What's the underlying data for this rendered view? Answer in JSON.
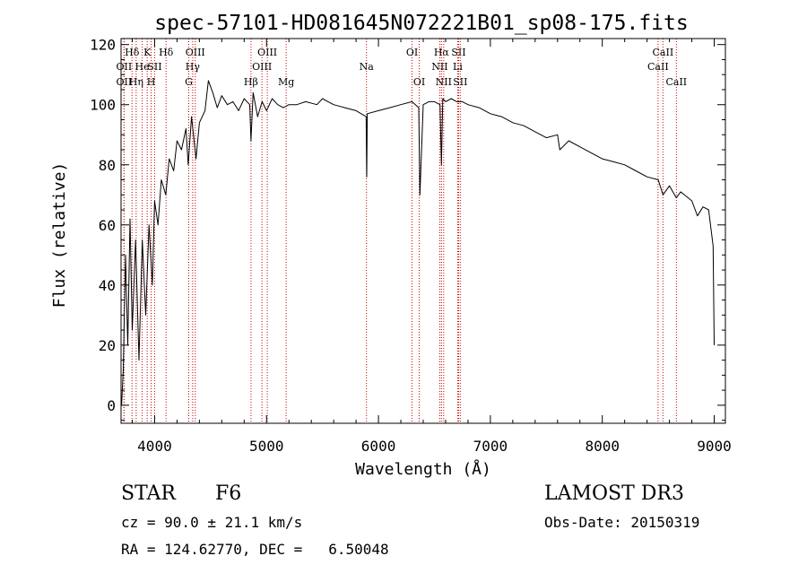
{
  "chart_data": {
    "type": "line",
    "title": "spec-57101-HD081645N072221B01_sp08-175.fits",
    "xlabel": "Wavelength (Å)",
    "ylabel": "Flux (relative)",
    "xlim": [
      3700,
      9100
    ],
    "ylim": [
      -6,
      122
    ],
    "xticks": [
      4000,
      5000,
      6000,
      7000,
      8000,
      9000
    ],
    "yticks": [
      0,
      20,
      40,
      60,
      80,
      100,
      120
    ],
    "xtick_labels": [
      "4000",
      "5000",
      "6000",
      "7000",
      "8000",
      "9000"
    ],
    "ytick_labels": [
      "0",
      "20",
      "40",
      "60",
      "80",
      "100",
      "120"
    ],
    "grid": false,
    "series": [
      {
        "name": "flux",
        "x": [
          3705,
          3720,
          3740,
          3760,
          3780,
          3800,
          3830,
          3860,
          3890,
          3920,
          3950,
          3980,
          4000,
          4030,
          4060,
          4100,
          4130,
          4170,
          4200,
          4240,
          4280,
          4300,
          4330,
          4370,
          4400,
          4450,
          4480,
          4520,
          4560,
          4600,
          4650,
          4700,
          4750,
          4800,
          4850,
          4861,
          4880,
          4920,
          4960,
          5000,
          5050,
          5100,
          5150,
          5200,
          5270,
          5350,
          5450,
          5500,
          5550,
          5600,
          5700,
          5800,
          5890,
          5895,
          5900,
          6000,
          6100,
          6200,
          6300,
          6360,
          6370,
          6400,
          6450,
          6500,
          6550,
          6563,
          6575,
          6600,
          6650,
          6700,
          6750,
          6800,
          6900,
          7000,
          7100,
          7200,
          7300,
          7400,
          7500,
          7600,
          7620,
          7700,
          7800,
          7900,
          8000,
          8100,
          8200,
          8300,
          8400,
          8500,
          8542,
          8600,
          8662,
          8700,
          8800,
          8850,
          8900,
          8950,
          8990,
          9000
        ],
        "values": [
          0,
          12,
          50,
          20,
          62,
          25,
          55,
          15,
          55,
          30,
          60,
          40,
          68,
          60,
          75,
          70,
          82,
          78,
          88,
          85,
          92,
          80,
          96,
          82,
          94,
          98,
          108,
          104,
          99,
          103,
          100,
          101,
          98,
          102,
          100,
          88,
          104,
          96,
          101,
          98,
          102,
          100,
          99,
          100,
          100,
          101,
          100,
          102,
          101,
          100,
          99,
          98,
          96,
          76,
          97,
          98,
          99,
          100,
          101,
          99,
          70,
          100,
          101,
          101,
          100,
          80,
          102,
          101,
          102,
          101,
          101,
          100,
          99,
          97,
          96,
          94,
          93,
          91,
          89,
          90,
          85,
          88,
          86,
          84,
          82,
          81,
          80,
          78,
          76,
          75,
          70,
          73,
          69,
          71,
          68,
          63,
          66,
          65,
          53,
          20
        ]
      }
    ],
    "line_markers": [
      {
        "label": "Hδ",
        "x": 3798,
        "row": 1
      },
      {
        "label": "OII",
        "x": 3727,
        "row": 2
      },
      {
        "label": "OII",
        "x": 3727,
        "row": 3
      },
      {
        "label": "He",
        "x": 3889,
        "row": 2
      },
      {
        "label": "Hη",
        "x": 3835,
        "row": 3
      },
      {
        "label": "K",
        "x": 3934,
        "row": 1
      },
      {
        "label": "SII",
        "x": 4000,
        "row": 2
      },
      {
        "label": "H",
        "x": 3969,
        "row": 3
      },
      {
        "label": "Hδ",
        "x": 4102,
        "row": 1
      },
      {
        "label": "OIII",
        "x": 4363,
        "row": 1
      },
      {
        "label": "Hγ",
        "x": 4340,
        "row": 2
      },
      {
        "label": "G",
        "x": 4305,
        "row": 3
      },
      {
        "label": "OIII",
        "x": 5007,
        "row": 1
      },
      {
        "label": "OIII",
        "x": 4959,
        "row": 2
      },
      {
        "label": "Hβ",
        "x": 4861,
        "row": 3
      },
      {
        "label": "Mg",
        "x": 5175,
        "row": 3
      },
      {
        "label": "Na",
        "x": 5893,
        "row": 2
      },
      {
        "label": "OI",
        "x": 6300,
        "row": 1
      },
      {
        "label": "OI",
        "x": 6364,
        "row": 3
      },
      {
        "label": "Hα",
        "x": 6563,
        "row": 1
      },
      {
        "label": "NII",
        "x": 6548,
        "row": 2
      },
      {
        "label": "NII",
        "x": 6583,
        "row": 3
      },
      {
        "label": "SII",
        "x": 6716,
        "row": 1
      },
      {
        "label": "Li",
        "x": 6708,
        "row": 2
      },
      {
        "label": "SII",
        "x": 6731,
        "row": 3
      },
      {
        "label": "CaII",
        "x": 8542,
        "row": 1
      },
      {
        "label": "CaII",
        "x": 8498,
        "row": 2
      },
      {
        "label": "CaII",
        "x": 8662,
        "row": 3
      }
    ]
  },
  "info": {
    "object_class": "STAR",
    "subclass": "F6",
    "survey": "LAMOST DR3",
    "cz": "cz = 90.0 ± 21.1 km/s",
    "obs_date": "Obs-Date: 20150319",
    "coords": "RA = 124.62770, DEC =   6.50048"
  },
  "colors": {
    "line": "#000000",
    "marker": "#cc0000"
  }
}
